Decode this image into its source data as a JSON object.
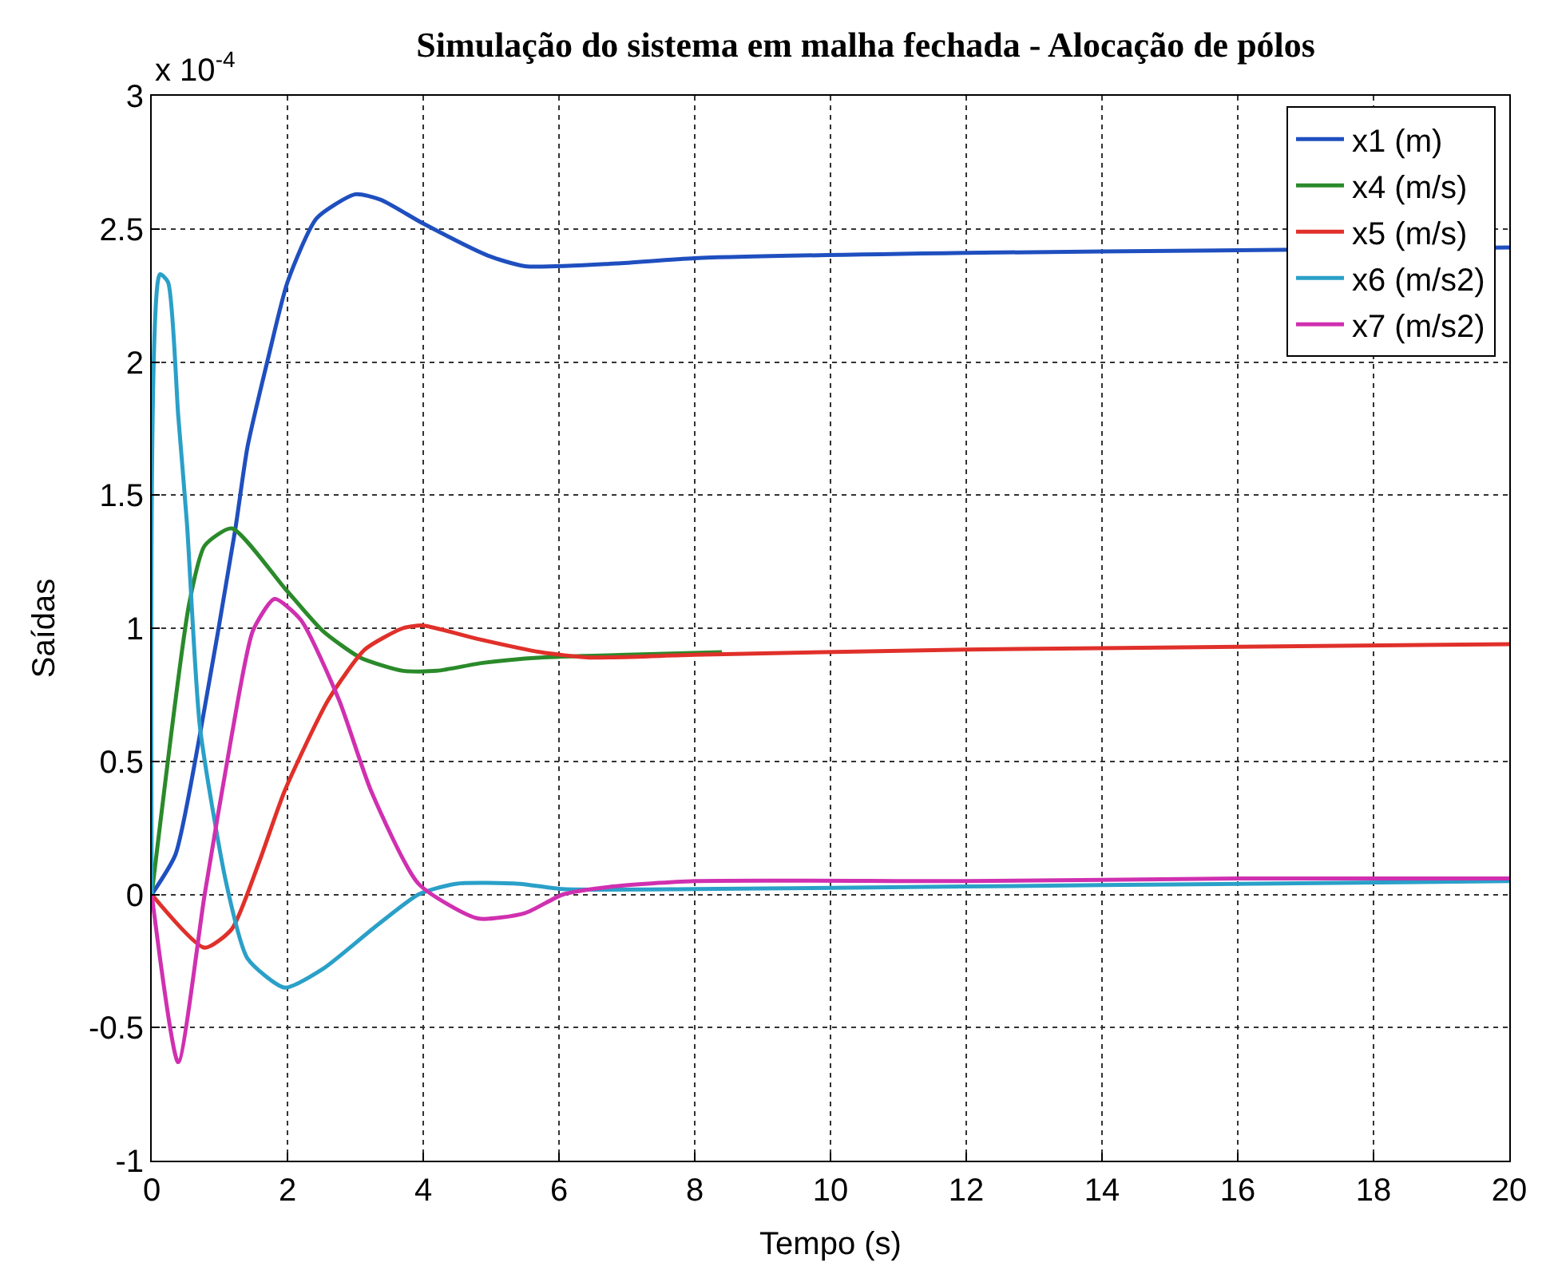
{
  "chart_data": {
    "type": "line",
    "title": "Simulação do sistema em malha fechada - Alocação de pólos",
    "xlabel": "Tempo (s)",
    "ylabel": "Saídas",
    "annotations": [
      "x 10$^{-4}$"
    ],
    "xlim": [
      0,
      20
    ],
    "xticks": [
      0,
      2,
      4,
      6,
      8,
      10,
      12,
      14,
      16,
      18,
      20
    ],
    "ylim": [
      -1,
      3
    ],
    "yticks": [
      -1,
      -0.5,
      0,
      0.5,
      1,
      1.5,
      2,
      2.5,
      3
    ],
    "grid": true,
    "legend": "top right",
    "line_style": "solid",
    "marker": "none",
    "series": [
      {
        "name": "x1 (m)",
        "color": "#1f4fbf",
        "x": [
          0,
          0.35,
          0.71,
          1.23,
          1.41,
          1.72,
          2.0,
          2.43,
          3.0,
          3.37,
          4.0,
          4.95,
          5.5,
          6.84,
          8,
          12,
          16,
          20
        ],
        "values": [
          0,
          0.15,
          0.6,
          1.37,
          1.68,
          2.02,
          2.3,
          2.54,
          2.63,
          2.61,
          2.52,
          2.4,
          2.36,
          2.37,
          2.39,
          2.41,
          2.42,
          2.43
        ]
      },
      {
        "name": "x4 (m/s)",
        "color": "#2a8a2a",
        "x": [
          0,
          0.55,
          0.78,
          1.18,
          1.96,
          2.52,
          3.07,
          3.7,
          4.2,
          4.88,
          5.73,
          7,
          8.4
        ],
        "values": [
          0,
          1.09,
          1.31,
          1.375,
          1.15,
          0.99,
          0.89,
          0.84,
          0.84,
          0.87,
          0.89,
          0.9,
          0.91
        ]
      },
      {
        "name": "x5 (m/s)",
        "color": "#e0302a",
        "x": [
          0,
          0.78,
          1.18,
          1.58,
          1.96,
          2.6,
          3.14,
          3.7,
          4.0,
          4.8,
          5.73,
          6.44,
          8,
          12,
          16,
          20
        ],
        "values": [
          0,
          -0.2,
          -0.13,
          0.12,
          0.39,
          0.73,
          0.92,
          1.0,
          1.01,
          0.96,
          0.91,
          0.89,
          0.9,
          0.92,
          0.93,
          0.94
        ]
      },
      {
        "name": "x6 (m/s2)",
        "color": "#2aa0c8",
        "x": [
          0,
          0.12,
          0.24,
          0.39,
          0.52,
          0.71,
          1.1,
          1.41,
          1.96,
          2.52,
          3.3,
          3.93,
          4.48,
          5.42,
          6.06,
          8,
          12,
          16,
          20
        ],
        "values": [
          0,
          2.33,
          2.3,
          1.8,
          1.39,
          0.63,
          0.04,
          -0.24,
          -0.35,
          -0.28,
          -0.12,
          0.0,
          0.04,
          0.04,
          0.02,
          0.02,
          0.03,
          0.04,
          0.05
        ]
      },
      {
        "name": "x7 (m/s2)",
        "color": "#d030b0",
        "x": [
          0,
          0.39,
          0.78,
          1.18,
          1.49,
          1.81,
          2.2,
          2.76,
          3.23,
          3.93,
          4.8,
          5.5,
          6.06,
          6.8,
          8,
          12,
          16,
          20
        ],
        "values": [
          0,
          -0.63,
          0,
          0.6,
          0.99,
          1.11,
          1.03,
          0.73,
          0.39,
          0.04,
          -0.09,
          -0.07,
          0,
          0.03,
          0.05,
          0.05,
          0.06,
          0.06
        ]
      }
    ]
  }
}
